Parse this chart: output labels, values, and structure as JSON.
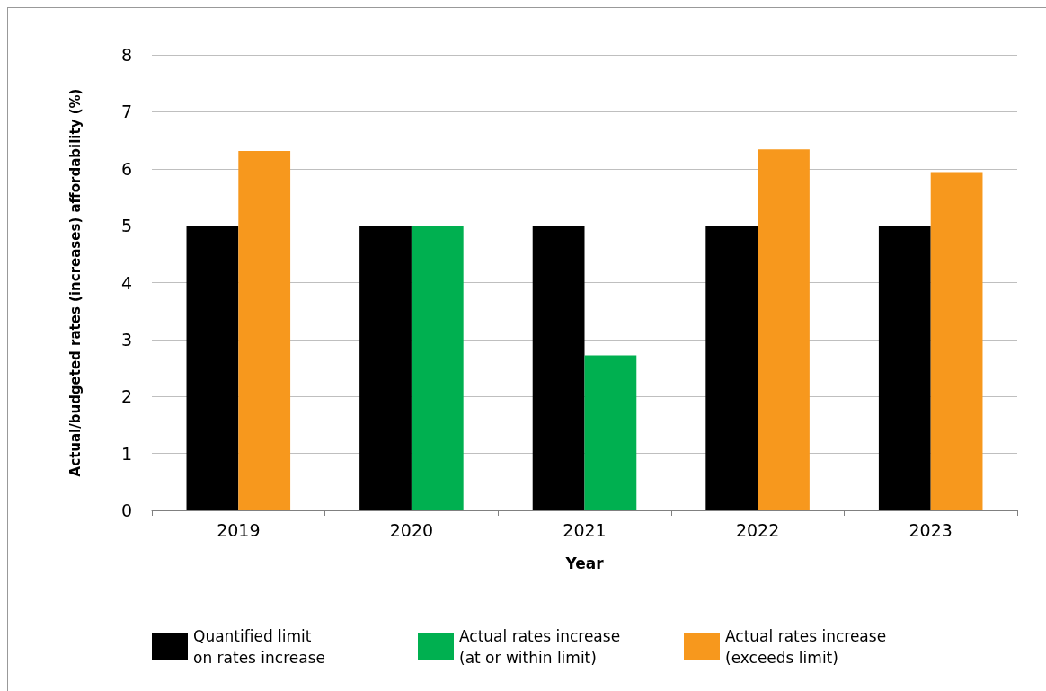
{
  "chart_data": {
    "type": "bar",
    "xlabel": "Year",
    "ylabel": "Actual/budgeted rates (increases) affordability (%)",
    "categories": [
      "2019",
      "2020",
      "2021",
      "2022",
      "2023"
    ],
    "series": [
      {
        "name": "Quantified limit on rates increase",
        "color": "#000000",
        "values": [
          5,
          5,
          5,
          5,
          5
        ]
      },
      {
        "name": "Actual rates increase (at or within limit)",
        "color": "#00b050",
        "values": [
          null,
          5,
          2.72,
          null,
          null
        ]
      },
      {
        "name": "Actual rates increase (exceeds limit)",
        "color": "#f7981d",
        "values": [
          6.31,
          null,
          null,
          6.34,
          5.94
        ]
      }
    ],
    "ylim": [
      0,
      8
    ],
    "yticks": [
      0,
      1,
      2,
      3,
      4,
      5,
      6,
      7,
      8
    ],
    "grid": "y",
    "legend": "bottom"
  }
}
